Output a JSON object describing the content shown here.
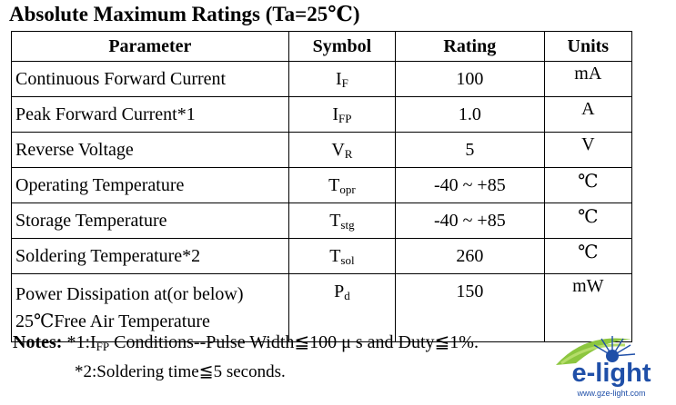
{
  "title": "Absolute Maximum Ratings (Ta=25℃)",
  "table": {
    "headers": [
      "Parameter",
      "Symbol",
      "Rating",
      "Units"
    ],
    "rows": [
      {
        "parameter": "Continuous Forward Current",
        "symbol_main": "I",
        "symbol_sub": "F",
        "rating": "100",
        "unit": "mA"
      },
      {
        "parameter": "Peak Forward Current*1",
        "symbol_main": "I",
        "symbol_sub": "FP",
        "rating": "1.0",
        "unit": "A"
      },
      {
        "parameter": "Reverse Voltage",
        "symbol_main": "V",
        "symbol_sub": "R",
        "rating": "5",
        "unit": "V"
      },
      {
        "parameter": "Operating Temperature",
        "symbol_main": "T",
        "symbol_sub": "opr",
        "rating": "-40 ~ +85",
        "unit": "℃"
      },
      {
        "parameter": "Storage Temperature",
        "symbol_main": "T",
        "symbol_sub": "stg",
        "rating": "-40 ~ +85",
        "unit": "℃"
      },
      {
        "parameter": "Soldering Temperature*2",
        "symbol_main": "T",
        "symbol_sub": "sol",
        "rating": "260",
        "unit": "℃"
      },
      {
        "parameter_line1": "Power Dissipation at(or below)",
        "parameter_line2": "25℃Free Air Temperature",
        "symbol_main": "P",
        "symbol_sub": "d",
        "rating": "150",
        "unit": "mW"
      }
    ]
  },
  "notes": {
    "label": "Notes:",
    "note1_prefix": " *1:I",
    "note1_sub": "FP",
    "note1_rest": " Conditions--Pulse Width≦100 μ s and Duty≦1%.",
    "note2": "*2:Soldering time≦5 seconds."
  },
  "logo": {
    "text": "e-light",
    "url_text": "www.gze-light.com",
    "colors": {
      "primary": "#1f4fa8",
      "accent": "#8cc63f"
    }
  }
}
